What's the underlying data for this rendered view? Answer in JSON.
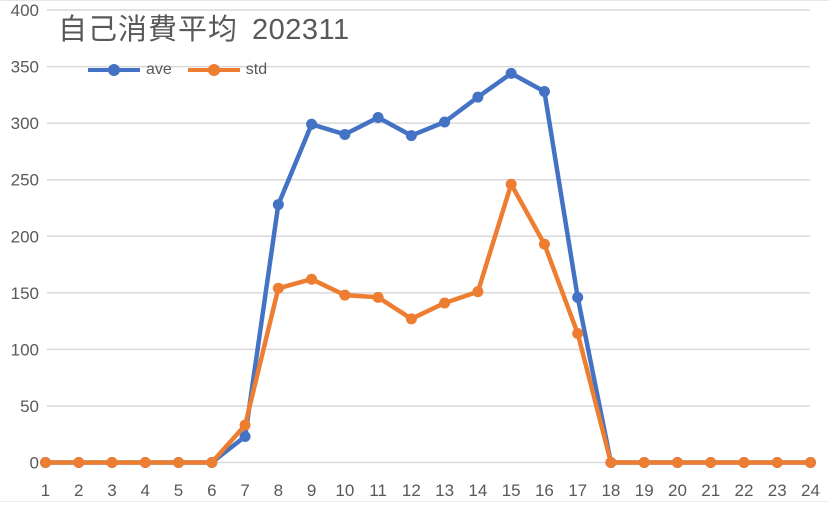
{
  "chart_data": {
    "type": "line",
    "title": "自己消費平均",
    "title_suffix": "202311",
    "xlabel": "",
    "ylabel": "",
    "categories": [
      "1",
      "2",
      "3",
      "4",
      "5",
      "6",
      "7",
      "8",
      "9",
      "10",
      "11",
      "12",
      "13",
      "14",
      "15",
      "16",
      "17",
      "18",
      "19",
      "20",
      "21",
      "22",
      "23",
      "24"
    ],
    "series": [
      {
        "name": "ave",
        "color": "#4472C4",
        "values": [
          0,
          0,
          0,
          0,
          0,
          0,
          23,
          228,
          299,
          290,
          305,
          289,
          301,
          323,
          344,
          328,
          146,
          0,
          0,
          0,
          0,
          0,
          0,
          0
        ]
      },
      {
        "name": "std",
        "color": "#ED7D31",
        "values": [
          0,
          0,
          0,
          0,
          0,
          0,
          33,
          154,
          162,
          148,
          146,
          127,
          141,
          151,
          246,
          193,
          114,
          0,
          0,
          0,
          0,
          0,
          0,
          0
        ]
      }
    ],
    "ylim": [
      0,
      400
    ],
    "yticks": [
      0,
      50,
      100,
      150,
      200,
      250,
      300,
      350,
      400
    ],
    "grid": true,
    "legend_position": "top-left"
  },
  "legend": {
    "items": [
      {
        "label": "ave",
        "color": "#4472C4"
      },
      {
        "label": "std",
        "color": "#ED7D31"
      }
    ]
  },
  "colors": {
    "gridline": "#D9D9D9",
    "axis_text": "#595959"
  }
}
